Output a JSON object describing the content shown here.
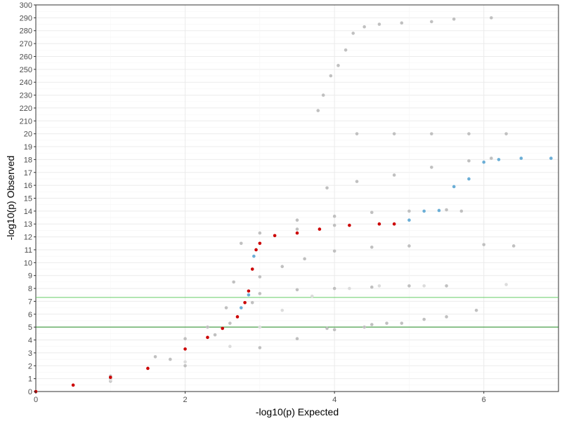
{
  "chart_data": {
    "type": "scatter",
    "title": "",
    "xlabel": "-log10(p) Expected",
    "ylabel": "-log10(p) Observed",
    "xlim": [
      0,
      7.0
    ],
    "x_ticks": [
      0,
      2,
      4,
      6
    ],
    "x_tick_labels": [
      "0",
      "2",
      "4",
      "6"
    ],
    "y_axis_note": "broken scale: 0-20 linear, 210-300 compressed above",
    "y_ticks": [
      0,
      1,
      2,
      3,
      4,
      5,
      6,
      7,
      8,
      9,
      10,
      11,
      12,
      13,
      14,
      15,
      16,
      17,
      18,
      19,
      20,
      210,
      220,
      230,
      240,
      250,
      260,
      270,
      280,
      290,
      300
    ],
    "y_tick_labels": [
      "0",
      "1",
      "2",
      "3",
      "4",
      "5",
      "6",
      "7",
      "8",
      "9",
      "10",
      "11",
      "12",
      "13",
      "14",
      "15",
      "16",
      "17",
      "18",
      "19",
      "20",
      "210",
      "220",
      "230",
      "240",
      "250",
      "260",
      "270",
      "280",
      "290",
      "300"
    ],
    "threshold_lines": [
      {
        "y": 7.3,
        "color": "#66cc66"
      },
      {
        "y": 5.0,
        "color": "#228b22"
      }
    ],
    "grid": true,
    "legend": "none",
    "colors": {
      "highlight": "#cc0000",
      "highlight_secondary": "#6baed6",
      "background_series": "#c0c0c0",
      "background_series_light": "#dcdcdc"
    },
    "series": [
      {
        "color": "#cc0000",
        "points": [
          [
            0,
            0
          ],
          [
            0.5,
            0.5
          ],
          [
            1,
            1.1
          ],
          [
            1.5,
            1.8
          ],
          [
            2,
            3.3
          ],
          [
            2.3,
            4.2
          ],
          [
            2.5,
            4.9
          ],
          [
            2.7,
            5.8
          ],
          [
            2.8,
            6.9
          ],
          [
            2.85,
            7.8
          ],
          [
            2.9,
            9.5
          ],
          [
            2.95,
            11
          ],
          [
            3.0,
            11.5
          ],
          [
            3.2,
            12.1
          ],
          [
            3.5,
            12.3
          ],
          [
            3.8,
            12.6
          ],
          [
            4.2,
            12.9
          ],
          [
            4.6,
            13.0
          ],
          [
            4.8,
            13.0
          ]
        ]
      },
      {
        "color": "#6baed6",
        "points": [
          [
            2.75,
            6.5
          ],
          [
            2.85,
            7.5
          ],
          [
            2.92,
            10.5
          ],
          [
            5.0,
            13.3
          ],
          [
            5.2,
            14.0
          ],
          [
            5.4,
            14.05
          ],
          [
            5.6,
            15.9
          ],
          [
            5.8,
            16.5
          ],
          [
            6.0,
            17.8
          ],
          [
            6.2,
            18.0
          ],
          [
            6.5,
            18.1
          ],
          [
            6.9,
            18.1
          ]
        ]
      },
      {
        "color": "#c0c0c0",
        "points": [
          [
            0,
            0
          ],
          [
            1,
            1.2
          ],
          [
            1.6,
            2.7
          ],
          [
            2,
            4.1
          ],
          [
            2.3,
            5.0
          ],
          [
            2.6,
            5.3
          ],
          [
            2.9,
            6.9
          ],
          [
            3.0,
            7.6
          ],
          [
            3.5,
            7.9
          ],
          [
            4.0,
            8.0
          ],
          [
            4.5,
            8.1
          ],
          [
            5.0,
            8.2
          ],
          [
            5.5,
            8.2
          ]
        ]
      },
      {
        "color": "#c0c0c0",
        "points": [
          [
            0,
            0
          ],
          [
            1,
            1.0
          ],
          [
            1.8,
            2.5
          ],
          [
            2.4,
            4.4
          ],
          [
            2.55,
            6.5
          ],
          [
            2.65,
            8.5
          ],
          [
            2.75,
            11.5
          ],
          [
            3.0,
            12.3
          ],
          [
            3.5,
            12.6
          ],
          [
            4.0,
            12.9
          ],
          [
            4.6,
            13.0
          ]
        ]
      },
      {
        "color": "#c0c0c0",
        "points": [
          [
            0,
            0
          ],
          [
            1,
            0.8
          ],
          [
            2,
            2.0
          ],
          [
            3,
            3.4
          ],
          [
            3.5,
            4.1
          ],
          [
            4,
            4.8
          ],
          [
            4.5,
            5.2
          ],
          [
            4.7,
            5.3
          ]
        ]
      },
      {
        "color": "#c0c0c0",
        "points": [
          [
            3.9,
            4.9
          ],
          [
            4.4,
            5.0
          ],
          [
            4.9,
            5.3
          ],
          [
            5.2,
            5.6
          ],
          [
            5.5,
            5.8
          ],
          [
            5.9,
            6.3
          ]
        ]
      },
      {
        "color": "#dcdcdc",
        "points": [
          [
            0,
            0
          ],
          [
            1,
            0.9
          ],
          [
            2,
            2.3
          ],
          [
            2.6,
            3.5
          ],
          [
            3,
            5.0
          ],
          [
            3.3,
            6.3
          ],
          [
            3.7,
            7.4
          ],
          [
            4.2,
            8.0
          ],
          [
            4.6,
            8.2
          ],
          [
            5.2,
            8.2
          ],
          [
            6.3,
            8.3
          ]
        ]
      },
      {
        "color": "#c0c0c0",
        "points": [
          [
            3.0,
            8.9
          ],
          [
            3.3,
            9.7
          ],
          [
            3.6,
            10.3
          ],
          [
            4.0,
            10.9
          ],
          [
            4.5,
            11.2
          ],
          [
            5.0,
            11.3
          ],
          [
            6.0,
            11.4
          ],
          [
            6.4,
            11.3
          ]
        ]
      },
      {
        "color": "#c0c0c0",
        "points": [
          [
            3.5,
            13.3
          ],
          [
            4.0,
            13.6
          ],
          [
            4.5,
            13.9
          ],
          [
            5.0,
            14.0
          ],
          [
            5.5,
            14.1
          ],
          [
            5.7,
            14.0
          ]
        ]
      },
      {
        "color": "#c0c0c0",
        "points": [
          [
            3.9,
            15.8
          ],
          [
            4.3,
            16.3
          ],
          [
            4.8,
            16.8
          ],
          [
            5.3,
            17.4
          ],
          [
            5.8,
            17.9
          ],
          [
            6.1,
            18.1
          ]
        ]
      },
      {
        "color": "#c0c0c0",
        "points": [
          [
            4.3,
            20.3
          ],
          [
            4.8,
            20.3
          ],
          [
            5.3,
            20.3
          ],
          [
            5.8,
            20.3
          ],
          [
            6.3,
            20.3
          ]
        ]
      },
      {
        "color": "#c0c0c0",
        "points": [
          [
            3.78,
            218
          ],
          [
            3.85,
            230
          ],
          [
            3.95,
            245
          ],
          [
            4.05,
            253
          ],
          [
            4.15,
            265
          ],
          [
            4.25,
            278
          ],
          [
            4.4,
            283
          ],
          [
            4.6,
            285
          ],
          [
            4.9,
            286
          ],
          [
            5.3,
            287
          ],
          [
            5.6,
            289
          ],
          [
            6.1,
            290
          ]
        ]
      }
    ]
  }
}
